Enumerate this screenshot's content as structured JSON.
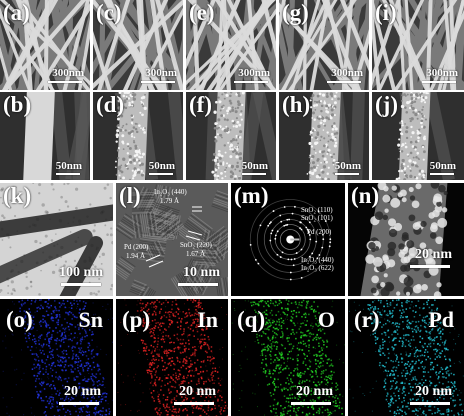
{
  "panels": {
    "a": {
      "label": "(a)",
      "scale": "300nm"
    },
    "c": {
      "label": "(c)",
      "scale": "300nm"
    },
    "e": {
      "label": "(e)",
      "scale": "300nm"
    },
    "g": {
      "label": "(g)",
      "scale": "300nm"
    },
    "i": {
      "label": "(i)",
      "scale": "300nm"
    },
    "b": {
      "label": "(b)",
      "scale": "50nm"
    },
    "d": {
      "label": "(d)",
      "scale": "50nm"
    },
    "f": {
      "label": "(f)",
      "scale": "50nm"
    },
    "h": {
      "label": "(h)",
      "scale": "50nm"
    },
    "j": {
      "label": "(j)",
      "scale": "50nm"
    },
    "k": {
      "label": "(k)",
      "scale": "100 nm"
    },
    "l": {
      "label": "(l)",
      "scale": "10 nm",
      "ann_in2o3_440": "In₂O₃ (440)",
      "ann_in2o3_440_d": "1.79 Å",
      "ann_pd200": "Pd (200)",
      "ann_pd200_d": "1.94 Å",
      "ann_sno2_220": "SnO₂ (220)",
      "ann_sno2_220_d": "1.67 Å"
    },
    "m": {
      "label": "(m)",
      "rings": [
        "SnO₂ (110)",
        "SnO₂ (101)",
        "Pd (200)",
        "In₂O₃ (440)",
        "In₂O₃ (622)"
      ]
    },
    "n": {
      "label": "(n)",
      "scale": "20 nm"
    },
    "o": {
      "label": "(o)",
      "element": "Sn",
      "scale": "20 nm",
      "color": "#2233dd"
    },
    "p": {
      "label": "(p)",
      "element": "In",
      "scale": "20 nm",
      "color": "#dd2222"
    },
    "q": {
      "label": "(q)",
      "element": "O",
      "scale": "20 nm",
      "color": "#22cc22"
    },
    "r": {
      "label": "(r)",
      "element": "Pd",
      "scale": "20 nm",
      "color": "#22bbcc"
    }
  }
}
